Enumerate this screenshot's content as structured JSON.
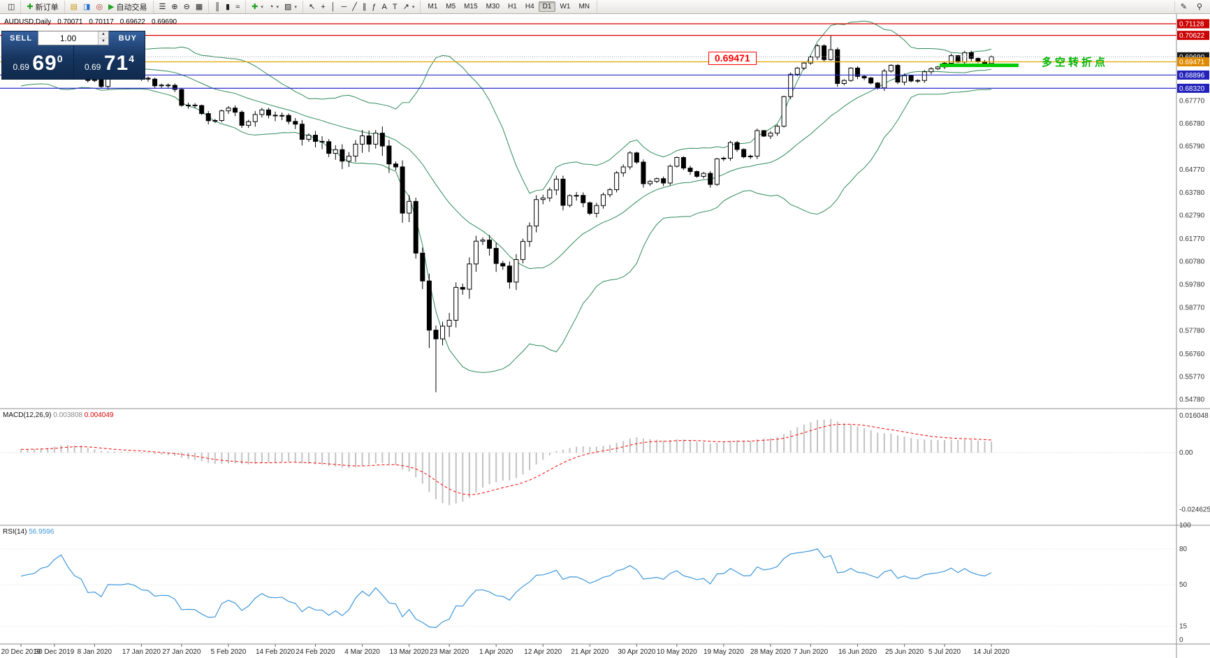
{
  "toolbar": {
    "groups": [
      {
        "name": "chart-group",
        "items": [
          {
            "name": "chart-window",
            "icon": "◫"
          }
        ]
      },
      {
        "name": "order-group",
        "items": [
          {
            "name": "new-order",
            "icon": "✚",
            "icon_color": "#1f9d1f",
            "label": "新订单"
          }
        ]
      },
      {
        "name": "service-group",
        "items": [
          {
            "name": "market-watch",
            "icon": "▤",
            "icon_color": "#c79b17"
          },
          {
            "name": "data-window",
            "icon": "◨",
            "icon_color": "#2a6fd4"
          },
          {
            "name": "navigator",
            "icon": "◎",
            "icon_color": "#b03a2e"
          },
          {
            "name": "auto-trading",
            "icon": "▶",
            "icon_color": "#23a523",
            "label": "自动交易"
          }
        ]
      },
      {
        "name": "window-group",
        "items": [
          {
            "name": "indicator-list",
            "icon": "☰"
          },
          {
            "name": "zoom-in",
            "icon": "⊕"
          },
          {
            "name": "zoom-out",
            "icon": "⊖"
          },
          {
            "name": "tile-windows",
            "icon": "▦"
          }
        ]
      },
      {
        "name": "chart-type-group",
        "items": [
          {
            "name": "bar-chart",
            "icon": "║"
          },
          {
            "name": "candle-chart",
            "icon": "▮"
          },
          {
            "name": "line-chart",
            "icon": "≈"
          }
        ]
      },
      {
        "name": "insert-group",
        "items": [
          {
            "name": "add-indicator",
            "icon": "✚",
            "icon_color": "#1f9d1f",
            "caret": true
          },
          {
            "name": "periods",
            "icon": "◔",
            "caret": true
          },
          {
            "name": "templates",
            "icon": "▨",
            "caret": true
          }
        ]
      },
      {
        "name": "draw-group",
        "items": [
          {
            "name": "cursor-tool",
            "icon": "↖"
          },
          {
            "name": "crosshair-tool",
            "icon": "+"
          },
          {
            "name": "vertical-line-tool",
            "icon": "│"
          },
          {
            "name": "horizontal-line-tool",
            "icon": "─"
          },
          {
            "name": "trendline-tool",
            "icon": "╱"
          },
          {
            "name": "channel-tool",
            "icon": "∥"
          },
          {
            "name": "fibonacci-tool",
            "icon": "ƒ"
          },
          {
            "name": "text-tool",
            "icon": "A"
          },
          {
            "name": "label-tool",
            "icon": "T"
          },
          {
            "name": "arrow-tool",
            "icon": "↗",
            "caret": true
          }
        ]
      },
      {
        "name": "timeframe-group",
        "items": [
          {
            "name": "timeframe-m1",
            "label": "M1"
          },
          {
            "name": "timeframe-m5",
            "label": "M5"
          },
          {
            "name": "timeframe-m15",
            "label": "M15"
          },
          {
            "name": "timeframe-m30",
            "label": "M30"
          },
          {
            "name": "timeframe-h1",
            "label": "H1"
          },
          {
            "name": "timeframe-h4",
            "label": "H4"
          },
          {
            "name": "timeframe-d1",
            "label": "D1",
            "active": true
          },
          {
            "name": "timeframe-w1",
            "label": "W1"
          },
          {
            "name": "timeframe-mn",
            "label": "MN"
          }
        ]
      }
    ],
    "right_items": [
      {
        "name": "draw-panel",
        "icon": "✎"
      },
      {
        "name": "search",
        "icon": "⚲"
      }
    ]
  },
  "chart_header": {
    "symbol_period": "AUDUSD,Daily",
    "open": "0.70071",
    "high": "0.70117",
    "low": "0.69622",
    "close": "0.69690"
  },
  "one_click": {
    "sell_label": "SELL",
    "buy_label": "BUY",
    "volume": "1.00",
    "sell_price_small": "0.69",
    "sell_price_big": "69",
    "sell_price_sup": "0",
    "buy_price_small": "0.69",
    "buy_price_big": "71",
    "buy_price_sup": "4"
  },
  "annotations": {
    "price_callout": {
      "text": "0.69471",
      "color": "#ff0000"
    },
    "turning_point": {
      "text": "多空转折点",
      "color": "#00b400",
      "line_color": "#00cc00",
      "line_x1": 1345,
      "line_x2": 1458,
      "line_price": 0.6932
    }
  },
  "levels": [
    {
      "name": "resistance-line-1",
      "price": 0.71128,
      "label": "0.71128",
      "line_color": "#dd0000",
      "box_color": "#cc0000",
      "text_color": "#ffffff",
      "dash": "none"
    },
    {
      "name": "resistance-line-2",
      "price": 0.70622,
      "label": "0.70622",
      "line_color": "#dd0000",
      "box_color": "#cc0000",
      "text_color": "#ffffff",
      "dash": "none"
    },
    {
      "name": "bid-price-line",
      "price": 0.6969,
      "label": "0.69690",
      "line_color": "#aaaaaa",
      "box_color": "#1a1a1a",
      "text_color": "#ffffff",
      "dash": "1,2"
    },
    {
      "name": "pivot-line",
      "price": 0.69471,
      "label": "0.69471",
      "line_color": "#e6a400",
      "box_color": "#e08a00",
      "text_color": "#ffffff",
      "dash": "none"
    },
    {
      "name": "support-line-1",
      "price": 0.68896,
      "label": "0.68896",
      "line_color": "#2a2ad0",
      "box_color": "#2222bb",
      "text_color": "#ffffff",
      "dash": "none"
    },
    {
      "name": "support-line-2",
      "price": 0.6832,
      "label": "0.68320",
      "line_color": "#2a2ad0",
      "box_color": "#2222bb",
      "text_color": "#ffffff",
      "dash": "none"
    }
  ],
  "chart_data": {
    "type": "candlestick",
    "symbol": "AUDUSD",
    "timeframe": "Daily",
    "ylim": [
      0.544,
      0.7145
    ],
    "price_axis_labels": [
      0.6777,
      0.6678,
      0.6579,
      0.6477,
      0.6378,
      0.6279,
      0.6177,
      0.6078,
      0.5978,
      0.5877,
      0.5778,
      0.5676,
      0.5577,
      0.5478
    ],
    "date_labels": [
      "20 Dec 2019",
      "30 Dec 2019",
      "8 Jan 2020",
      "17 Jan 2020",
      "27 Jan 2020",
      "5 Feb 2020",
      "14 Feb 2020",
      "24 Feb 2020",
      "4 Mar 2020",
      "13 Mar 2020",
      "23 Mar 2020",
      "1 Apr 2020",
      "12 Apr 2020",
      "21 Apr 2020",
      "30 Apr 2020",
      "10 May 2020",
      "19 May 2020",
      "28 May 2020",
      "7 Jun 2020",
      "16 Jun 2020",
      "25 Jun 2020",
      "5 Jul 2020",
      "14 Jul 2020"
    ],
    "date_indices": [
      0,
      5,
      11,
      18,
      24,
      31,
      38,
      44,
      51,
      58,
      64,
      71,
      78,
      85,
      92,
      98,
      105,
      112,
      118,
      125,
      132,
      138,
      145
    ],
    "first_open": 0.6895,
    "lead_in": [
      0.6825,
      0.6838,
      0.6852,
      0.6845,
      0.6861,
      0.6872,
      0.6866,
      0.6881,
      0.6876,
      0.6862,
      0.6873,
      0.6888,
      0.6894,
      0.6884,
      0.6879,
      0.689,
      0.6899,
      0.6889,
      0.688,
      0.6888
    ],
    "closes": [
      0.69,
      0.6907,
      0.6912,
      0.6936,
      0.6944,
      0.6985,
      0.7021,
      0.6984,
      0.695,
      0.6936,
      0.6866,
      0.6869,
      0.684,
      0.6901,
      0.69,
      0.6899,
      0.6905,
      0.6897,
      0.6876,
      0.6872,
      0.6843,
      0.6846,
      0.6845,
      0.6827,
      0.6758,
      0.6759,
      0.6757,
      0.6722,
      0.6691,
      0.6692,
      0.6734,
      0.6746,
      0.6728,
      0.6671,
      0.6687,
      0.6718,
      0.6738,
      0.6715,
      0.6712,
      0.6714,
      0.6688,
      0.6676,
      0.661,
      0.6628,
      0.6601,
      0.66,
      0.6549,
      0.6565,
      0.6515,
      0.6537,
      0.6589,
      0.6625,
      0.6589,
      0.6637,
      0.6581,
      0.6503,
      0.649,
      0.6289,
      0.634,
      0.6115,
      0.5994,
      0.578,
      0.5742,
      0.5797,
      0.5823,
      0.5966,
      0.5958,
      0.6068,
      0.6167,
      0.6172,
      0.6136,
      0.607,
      0.6059,
      0.5989,
      0.6087,
      0.6166,
      0.6233,
      0.6348,
      0.6355,
      0.639,
      0.6437,
      0.6323,
      0.6365,
      0.6366,
      0.6334,
      0.6288,
      0.6322,
      0.6369,
      0.6391,
      0.6464,
      0.649,
      0.6551,
      0.6511,
      0.6417,
      0.6427,
      0.6439,
      0.642,
      0.6493,
      0.6531,
      0.6485,
      0.647,
      0.6449,
      0.6462,
      0.6414,
      0.6525,
      0.6528,
      0.6596,
      0.6566,
      0.6534,
      0.6537,
      0.6648,
      0.6624,
      0.6637,
      0.6667,
      0.6796,
      0.6893,
      0.692,
      0.6942,
      0.6968,
      0.7017,
      0.6957,
      0.7,
      0.6853,
      0.6866,
      0.692,
      0.6884,
      0.6877,
      0.6855,
      0.6834,
      0.6907,
      0.6932,
      0.6859,
      0.6887,
      0.6864,
      0.6866,
      0.6904,
      0.6917,
      0.6925,
      0.6941,
      0.6974,
      0.6946,
      0.6987,
      0.6962,
      0.6948,
      0.694,
      0.6969
    ],
    "wick_overrides": {
      "61": {
        "low": 0.5702
      },
      "62": {
        "low": 0.551
      },
      "119": {
        "high": 0.7025
      },
      "121": {
        "high": 0.7064
      }
    },
    "bollinger": {
      "period": 20,
      "deviation": 2,
      "color": "#2e8b57"
    },
    "macd": {
      "label": "MACD(12,26,9)",
      "value": "0.003808",
      "signal_value": "0.004049",
      "fast": 12,
      "slow": 26,
      "signal": 9,
      "axis_labels": [
        "0.016048",
        "0.00",
        "-0.024625"
      ],
      "axis_values": [
        0.016048,
        0,
        -0.024625
      ],
      "histogram_color": "#c2c2c2",
      "signal_color": "#ff0000"
    },
    "rsi": {
      "label": "RSI(14)",
      "value": "56.9596",
      "period": 14,
      "color": "#3f97d9",
      "axis_labels": [
        "100",
        "80",
        "50",
        "15",
        "0"
      ],
      "axis_values": [
        100,
        80,
        50,
        15,
        0
      ],
      "levels": [
        80,
        50,
        15
      ]
    }
  }
}
